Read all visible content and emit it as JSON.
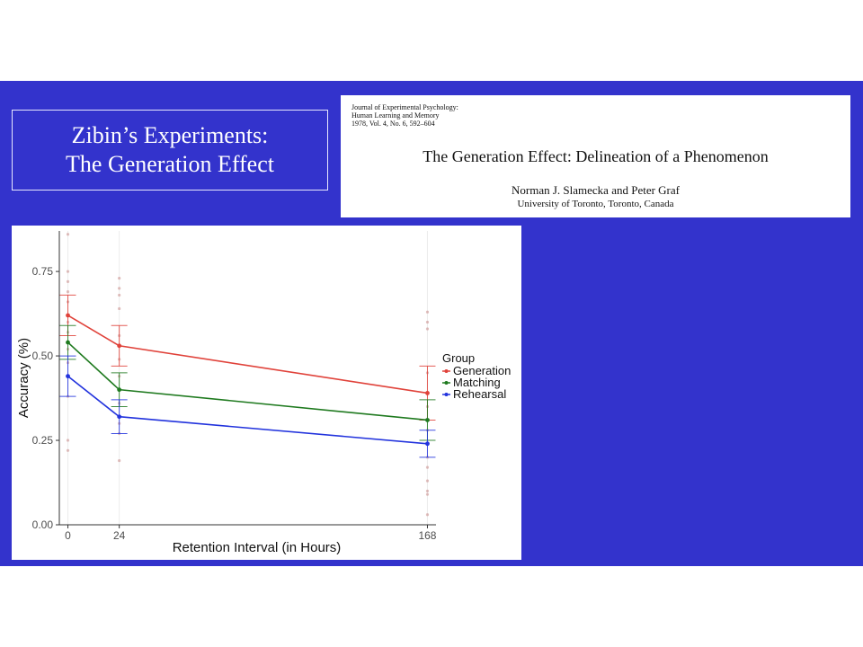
{
  "slide": {
    "title_lines": [
      "Zibin’s Experiments:",
      "The Generation Effect"
    ]
  },
  "paper": {
    "journal_lines": [
      "Journal of Experimental Psychology:",
      "Human Learning and Memory",
      "1978, Vol. 4, No. 6, 592–604"
    ],
    "title": "The Generation Effect: Delineation of a Phenomenon",
    "authors": "Norman J. Slamecka and Peter Graf",
    "affiliation": "University of Toronto, Toronto, Canada"
  },
  "colors": {
    "background_band": "#3333cc",
    "Generation": "#e0423a",
    "Matching": "#1f7a1f",
    "Rehearsal": "#2233dd"
  },
  "chart_data": {
    "type": "line",
    "x": [
      0,
      24,
      168
    ],
    "xlabel": "Retention Interval (in Hours)",
    "ylabel": "Accuracy (%)",
    "xlim": [
      -4,
      172
    ],
    "ylim": [
      0,
      0.87
    ],
    "y_ticks": [
      "0.00",
      "0.25",
      "0.50",
      "0.75"
    ],
    "y_tick_values": [
      0,
      0.25,
      0.5,
      0.75
    ],
    "x_ticks": [
      "0",
      "24",
      "168"
    ],
    "x_tick_values": [
      0,
      24,
      168
    ],
    "legend_title": "Group",
    "legend_position": "right",
    "series": [
      {
        "name": "Generation",
        "values": [
          0.62,
          0.53,
          0.39
        ],
        "err": [
          0.06,
          0.06,
          0.08
        ]
      },
      {
        "name": "Matching",
        "values": [
          0.54,
          0.4,
          0.31
        ],
        "err": [
          0.05,
          0.05,
          0.06
        ]
      },
      {
        "name": "Rehearsal",
        "values": [
          0.44,
          0.32,
          0.24
        ],
        "err": [
          0.06,
          0.05,
          0.04
        ]
      }
    ],
    "scatter_points": [
      {
        "x": 0,
        "y": 0.86
      },
      {
        "x": 0,
        "y": 0.75
      },
      {
        "x": 0,
        "y": 0.72
      },
      {
        "x": 0,
        "y": 0.69
      },
      {
        "x": 0,
        "y": 0.66
      },
      {
        "x": 0,
        "y": 0.6
      },
      {
        "x": 0,
        "y": 0.57
      },
      {
        "x": 0,
        "y": 0.52
      },
      {
        "x": 0,
        "y": 0.48
      },
      {
        "x": 0,
        "y": 0.44
      },
      {
        "x": 0,
        "y": 0.38
      },
      {
        "x": 0,
        "y": 0.25
      },
      {
        "x": 0,
        "y": 0.22
      },
      {
        "x": 24,
        "y": 0.73
      },
      {
        "x": 24,
        "y": 0.7
      },
      {
        "x": 24,
        "y": 0.68
      },
      {
        "x": 24,
        "y": 0.64
      },
      {
        "x": 24,
        "y": 0.56
      },
      {
        "x": 24,
        "y": 0.49
      },
      {
        "x": 24,
        "y": 0.44
      },
      {
        "x": 24,
        "y": 0.36
      },
      {
        "x": 24,
        "y": 0.3
      },
      {
        "x": 24,
        "y": 0.27
      },
      {
        "x": 24,
        "y": 0.19
      },
      {
        "x": 168,
        "y": 0.63
      },
      {
        "x": 168,
        "y": 0.6
      },
      {
        "x": 168,
        "y": 0.58
      },
      {
        "x": 168,
        "y": 0.45
      },
      {
        "x": 168,
        "y": 0.35
      },
      {
        "x": 168,
        "y": 0.28
      },
      {
        "x": 168,
        "y": 0.2
      },
      {
        "x": 168,
        "y": 0.17
      },
      {
        "x": 168,
        "y": 0.13
      },
      {
        "x": 168,
        "y": 0.1
      },
      {
        "x": 168,
        "y": 0.09
      },
      {
        "x": 168,
        "y": 0.03
      }
    ]
  }
}
